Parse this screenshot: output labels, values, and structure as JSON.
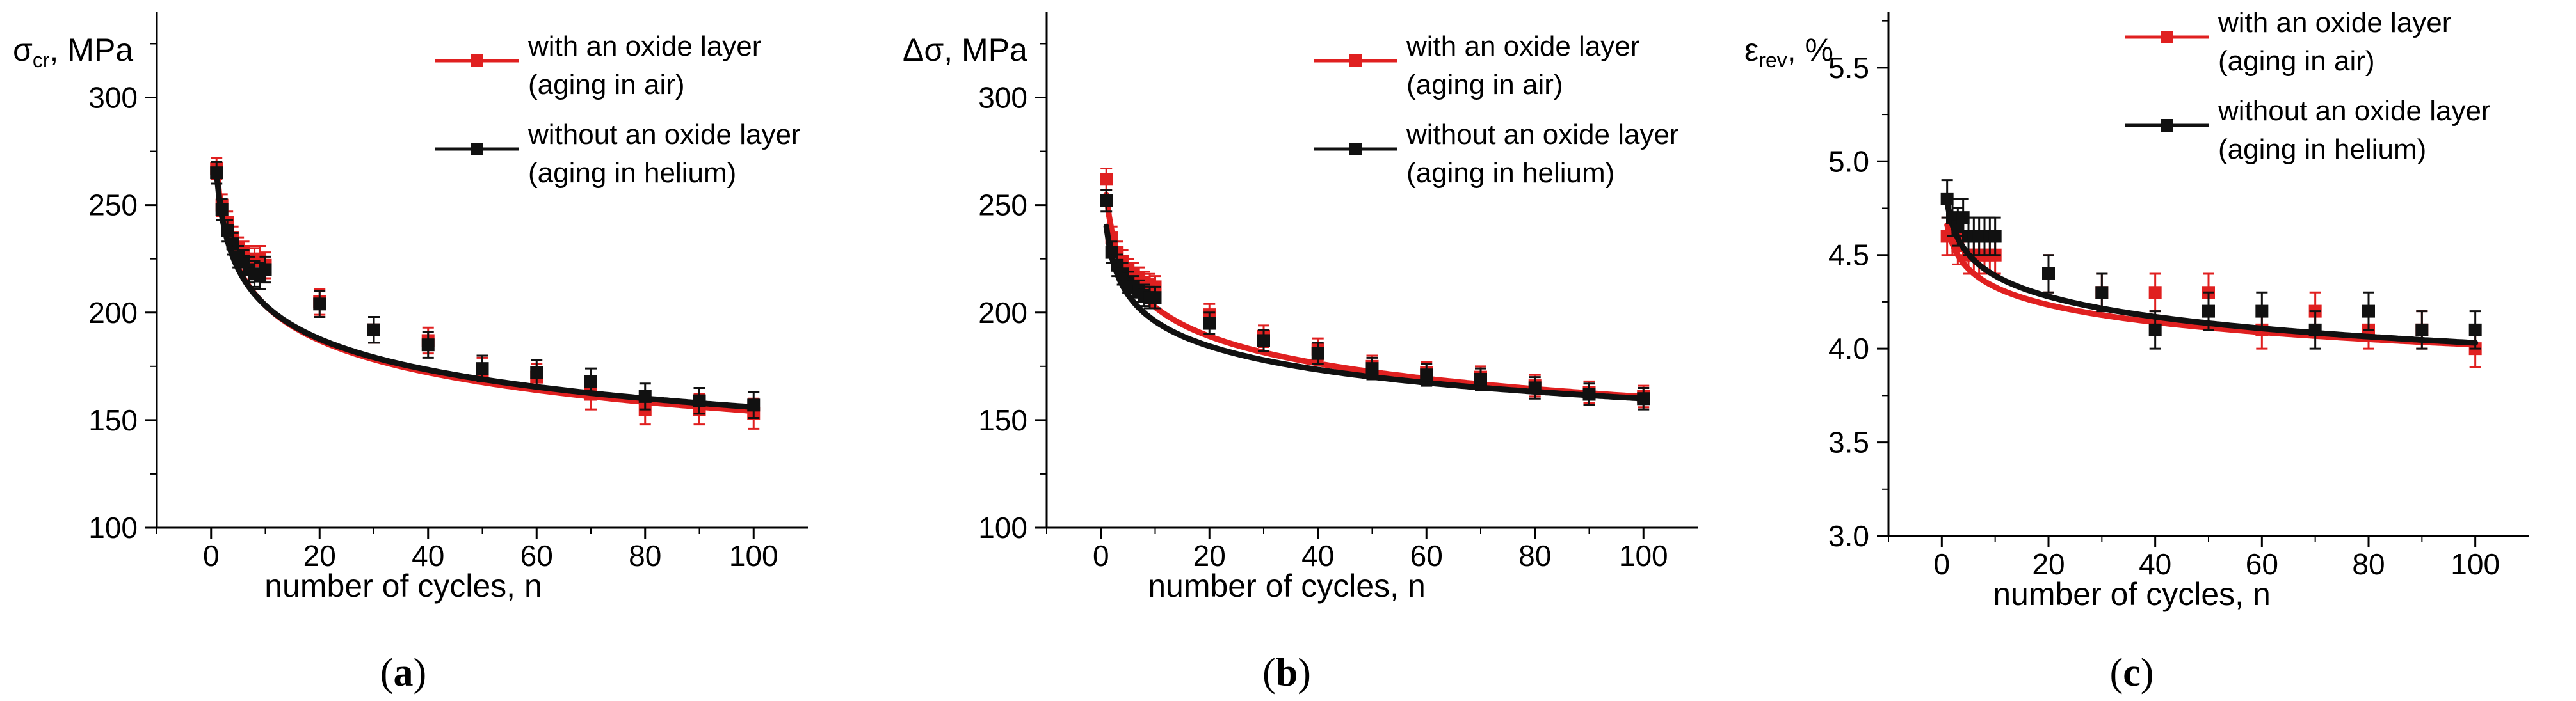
{
  "figure": {
    "panels": [
      "(a)",
      "(b)",
      "(c)"
    ]
  },
  "colors": {
    "series_air": "#e02020",
    "series_helium": "#111111",
    "axis": "#000000"
  },
  "chart_data": [
    {
      "type": "scatter",
      "panel_label": "(a)",
      "panel_letter": "a",
      "ylabel_main": "σ",
      "ylabel_sub": "cr",
      "ylabel_unit": ", MPa",
      "xlabel": "number of cycles, n",
      "xlim": [
        -10,
        110
      ],
      "ylim": [
        100,
        340
      ],
      "xticks": [
        0,
        20,
        40,
        60,
        80,
        100
      ],
      "yticks": [
        100,
        150,
        200,
        250,
        300
      ],
      "xtick_labels": [
        "0",
        "20",
        "40",
        "60",
        "80",
        "100"
      ],
      "ytick_labels": [
        "100",
        "150",
        "200",
        "250",
        "300"
      ],
      "legend_position": "top-right",
      "series": [
        {
          "name": "with an oxide layer",
          "name2": "(aging in air)",
          "color": "#e02020",
          "x": [
            1,
            2,
            3,
            4,
            5,
            6,
            7,
            8,
            9,
            10,
            20,
            30,
            40,
            50,
            60,
            70,
            80,
            90,
            100
          ],
          "y": [
            267,
            250,
            242,
            235,
            230,
            228,
            225,
            224,
            225,
            222,
            205,
            192,
            187,
            173,
            170,
            162,
            155,
            155,
            153
          ],
          "err": [
            5,
            5,
            5,
            5,
            5,
            5,
            6,
            6,
            6,
            6,
            6,
            6,
            6,
            6,
            6,
            7,
            7,
            7,
            7
          ],
          "fit_a": 268,
          "fit_b": 0.12
        },
        {
          "name": "without an oxide layer",
          "name2": "(aging in helium)",
          "color": "#111111",
          "x": [
            1,
            2,
            3,
            4,
            5,
            6,
            7,
            8,
            9,
            10,
            20,
            30,
            40,
            50,
            60,
            70,
            80,
            90,
            100
          ],
          "y": [
            265,
            248,
            238,
            232,
            226,
            224,
            220,
            218,
            217,
            220,
            204,
            192,
            185,
            174,
            172,
            168,
            161,
            159,
            157
          ],
          "err": [
            5,
            5,
            5,
            5,
            5,
            5,
            6,
            6,
            6,
            6,
            6,
            6,
            6,
            6,
            6,
            6,
            6,
            6,
            6
          ],
          "fit_a": 265,
          "fit_b": 0.115
        }
      ]
    },
    {
      "type": "scatter",
      "panel_label": "(b)",
      "panel_letter": "b",
      "ylabel_main": "Δσ",
      "ylabel_sub": "",
      "ylabel_unit": ", MPa",
      "xlabel": "number of cycles, n",
      "xlim": [
        -10,
        110
      ],
      "ylim": [
        100,
        340
      ],
      "xticks": [
        0,
        20,
        40,
        60,
        80,
        100
      ],
      "yticks": [
        100,
        150,
        200,
        250,
        300
      ],
      "xtick_labels": [
        "0",
        "20",
        "40",
        "60",
        "80",
        "100"
      ],
      "ytick_labels": [
        "100",
        "150",
        "200",
        "250",
        "300"
      ],
      "legend_position": "top-right",
      "series": [
        {
          "name": "with an oxide layer",
          "name2": "(aging in air)",
          "color": "#e02020",
          "x": [
            1,
            2,
            3,
            4,
            5,
            6,
            7,
            8,
            9,
            10,
            20,
            30,
            40,
            50,
            60,
            70,
            80,
            90,
            100
          ],
          "y": [
            262,
            235,
            228,
            224,
            220,
            218,
            216,
            214,
            213,
            212,
            199,
            189,
            183,
            175,
            172,
            170,
            166,
            163,
            161
          ],
          "err": [
            5,
            5,
            5,
            5,
            5,
            5,
            5,
            5,
            5,
            5,
            5,
            5,
            5,
            5,
            5,
            5,
            5,
            5,
            5
          ],
          "fit_a": 255,
          "fit_b": 0.1
        },
        {
          "name": "without an oxide layer",
          "name2": "(aging in helium)",
          "color": "#111111",
          "x": [
            1,
            2,
            3,
            4,
            5,
            6,
            7,
            8,
            9,
            10,
            20,
            30,
            40,
            50,
            60,
            70,
            80,
            90,
            100
          ],
          "y": [
            252,
            228,
            222,
            218,
            214,
            212,
            210,
            208,
            207,
            207,
            195,
            187,
            181,
            174,
            171,
            169,
            165,
            162,
            160
          ],
          "err": [
            5,
            5,
            5,
            5,
            5,
            5,
            5,
            5,
            5,
            5,
            5,
            5,
            5,
            5,
            5,
            5,
            5,
            5,
            5
          ],
          "fit_a": 240,
          "fit_b": 0.088
        }
      ]
    },
    {
      "type": "scatter",
      "panel_label": "(c)",
      "panel_letter": "c",
      "ylabel_main": "ε",
      "ylabel_sub": "rev",
      "ylabel_unit": ", %",
      "xlabel": "number of cycles, n",
      "xlim": [
        -10,
        110
      ],
      "ylim": [
        3.0,
        5.8
      ],
      "xticks": [
        0,
        20,
        40,
        60,
        80,
        100
      ],
      "yticks": [
        3.0,
        3.5,
        4.0,
        4.5,
        5.0,
        5.5
      ],
      "xtick_labels": [
        "0",
        "20",
        "40",
        "60",
        "80",
        "100"
      ],
      "ytick_labels": [
        "3.0",
        "3.5",
        "4.0",
        "4.5",
        "5.0",
        "5.5"
      ],
      "legend_position": "top-right",
      "series": [
        {
          "name": "with an oxide layer",
          "name2": "(aging in air)",
          "color": "#e02020",
          "x": [
            1,
            2,
            3,
            4,
            5,
            6,
            7,
            8,
            9,
            10,
            20,
            30,
            40,
            50,
            60,
            70,
            80,
            90,
            100
          ],
          "y": [
            4.6,
            4.6,
            4.55,
            4.6,
            4.5,
            4.5,
            4.5,
            4.5,
            4.5,
            4.5,
            4.4,
            4.3,
            4.3,
            4.3,
            4.1,
            4.2,
            4.1,
            4.1,
            4.0
          ],
          "err": [
            0.1,
            0.1,
            0.1,
            0.1,
            0.1,
            0.1,
            0.1,
            0.1,
            0.1,
            0.1,
            0.1,
            0.1,
            0.1,
            0.1,
            0.1,
            0.1,
            0.1,
            0.1,
            0.1
          ],
          "fit_a": 4.66,
          "fit_b": 0.032
        },
        {
          "name": "without an oxide layer",
          "name2": "(aging in helium)",
          "color": "#111111",
          "x": [
            1,
            2,
            3,
            4,
            5,
            6,
            7,
            8,
            9,
            10,
            20,
            30,
            40,
            50,
            60,
            70,
            80,
            90,
            100
          ],
          "y": [
            4.8,
            4.7,
            4.65,
            4.7,
            4.6,
            4.6,
            4.6,
            4.6,
            4.6,
            4.6,
            4.4,
            4.3,
            4.1,
            4.2,
            4.2,
            4.1,
            4.2,
            4.1,
            4.1
          ],
          "err": [
            0.1,
            0.1,
            0.1,
            0.1,
            0.1,
            0.1,
            0.1,
            0.1,
            0.1,
            0.1,
            0.1,
            0.1,
            0.1,
            0.1,
            0.1,
            0.1,
            0.1,
            0.1,
            0.1
          ],
          "fit_a": 4.78,
          "fit_b": 0.037
        }
      ]
    }
  ]
}
